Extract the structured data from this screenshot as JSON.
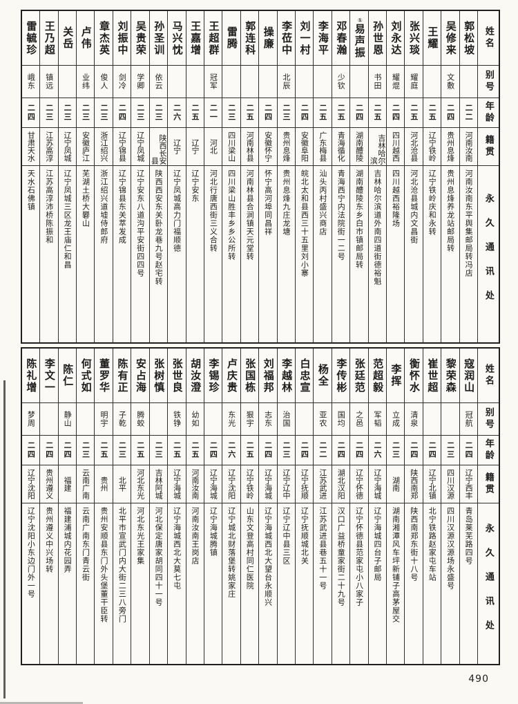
{
  "page": {
    "number": "490"
  },
  "headers": {
    "name": "姓名",
    "alias": "别号",
    "age": "年龄",
    "native": "籍贯",
    "address": "永久通讯处"
  },
  "tables": [
    {
      "persons": [
        {
          "name": "郭松坡",
          "alias": "",
          "age": "二二",
          "native": "河南汝南",
          "address": "河南汝南东平舆集邮局转冯店"
        },
        {
          "name": "吴修来",
          "alias": "文敷",
          "age": "二四",
          "native": "贵州息烽",
          "address": "贵州息烽养龙站邮局转"
        },
        {
          "name": "王耀",
          "alias": "",
          "age": "二五",
          "native": "辽宁铁岭",
          "address": "辽宁铁岭庆和永转"
        },
        {
          "name": "张兴琰",
          "alias": "耀庭",
          "age": "二五",
          "native": "河北沧县",
          "address": "河北沧县城内文昌街"
        },
        {
          "name": "刘永达",
          "alias": "耀焜",
          "age": "二四",
          "native": "四川越西",
          "address": "四川越西裕隆场"
        },
        {
          "name": "孙世恩",
          "alias": "书田",
          "age": "二五",
          "native": "吉林哈尔滨",
          "address": "吉林哈尔滨道外南四道街德裕魁"
        },
        {
          "name": "易声振",
          "note": "①",
          "alias": "",
          "age": "二四",
          "native": "湖南醴陵",
          "address": "湖南醴陵东乡白市镇邮局转"
        },
        {
          "name": "邓春瀚",
          "alias": "少钦",
          "age": "二五",
          "native": "青海循化",
          "address": "青海西宁内法院街一二号"
        },
        {
          "name": "李海平",
          "alias": "",
          "age": "二五",
          "native": "广东梅县",
          "address": "汕头丙村盛兴商店"
        },
        {
          "name": "刘一村",
          "alias": "",
          "age": "二四",
          "native": "安徽阜阳",
          "address": "皖北太和县西三十五里刘小寨"
        },
        {
          "name": "李莅中",
          "alias": "北辰",
          "age": "二三",
          "native": "贵州息烽",
          "address": "贵州息烽九庄龙塘"
        },
        {
          "name": "操廉",
          "alias": "",
          "age": "二四",
          "native": "安徽怀宁",
          "address": "怀宁高河埠同昌祥"
        },
        {
          "name": "郭连科",
          "alias": "",
          "age": "二五",
          "native": "河南林县",
          "address": "河南林县合涧镇天元堂转"
        },
        {
          "name": "雷腾",
          "alias": "",
          "age": "二三",
          "native": "四川梁山",
          "address": "四川梁山胜丰乡乡公所转"
        },
        {
          "name": "王超群",
          "alias": "冠军",
          "age": "二一",
          "native": "河北",
          "address": "河北行唐西街三义合转"
        },
        {
          "name": "王嘉增",
          "alias": "",
          "age": "二五",
          "native": "辽宁",
          "address": "辽宁安东"
        },
        {
          "name": "马兴忱",
          "alias": "",
          "age": "二六",
          "native": "辽宁",
          "address": "辽宁凤城高力门福顺德"
        },
        {
          "name": "孙圣训",
          "alias": "依云",
          "age": "二三",
          "native": "陕西长安县",
          "address": "陕西西安东关卧龙巷九号赵宅转"
        },
        {
          "name": "吴贵荣",
          "alias": "学卿",
          "age": "二三",
          "native": "辽宁凤城",
          "address": "辽宁安东八道沟平安街四四号"
        },
        {
          "name": "刘振中",
          "alias": "剑冷",
          "age": "二四",
          "native": "辽宁锦县",
          "address": "辽宁锦县东关萃发成"
        },
        {
          "name": "章杰英",
          "alias": "俊人",
          "age": "二三",
          "native": "浙江绍兴",
          "address": "浙江绍兴道墟侍郎府"
        },
        {
          "name": "卢伟",
          "alias": "业纬",
          "age": "二三",
          "native": "安徽庐江",
          "address": "芜湖土桥大礬山"
        },
        {
          "name": "关岳",
          "alias": "",
          "age": "二三",
          "native": "辽宁凤城",
          "address": "辽宁凤城三区龙王庙仁和昌"
        },
        {
          "name": "王乃超",
          "alias": "镇远",
          "age": "二三",
          "native": "江苏高淳",
          "address": "江苏高淳沛桥陈振和"
        },
        {
          "name": "雷毓珍",
          "alias": "峨东",
          "age": "二四",
          "native": "甘肃天水",
          "address": "天水石佛镇"
        }
      ]
    },
    {
      "persons": [
        {
          "name": "寇润山",
          "alias": "冠航",
          "age": "二四",
          "native": "辽宁西丰",
          "address": "青岛莱芜路四号"
        },
        {
          "name": "黎荣森",
          "alias": "",
          "age": "二三",
          "native": "四川汉源",
          "address": "四川汉源汉源场永盛号"
        },
        {
          "name": "崔世超",
          "alias": "",
          "age": "二四",
          "native": "辽宁北镇",
          "address": "北宁铁路赵家屯车站"
        },
        {
          "name": "衡怀水",
          "alias": "清泉",
          "age": "二四",
          "native": "陕西南郑",
          "address": "陕西南郑东街十八号"
        },
        {
          "name": "李挥",
          "alias": "立成",
          "age": "二三",
          "native": "湖南",
          "address": "湖南湘潭风车坪新铺子高茅屋交"
        },
        {
          "name": "范超毅",
          "alias": "军韬",
          "age": "二六",
          "native": "辽宁海城",
          "address": "辽宁海城四台子邮局"
        },
        {
          "name": "张廷范",
          "alias": "之邑",
          "age": "二四",
          "native": "辽宁怀德",
          "address": "辽宁怀德县范家屯小八家子"
        },
        {
          "name": "李传彬",
          "alias": "国均",
          "age": "二四",
          "native": "湖北汉阳",
          "address": "汉口广益桥童家街二十九号"
        },
        {
          "name": "杨全",
          "alias": "亚农",
          "age": "二二",
          "native": "江苏武进",
          "address": "江苏武进县巷五十一号"
        },
        {
          "name": "白忠宣",
          "alias": "",
          "age": "二四",
          "native": "辽宁抚顺",
          "address": "辽宁抚顺城北关"
        },
        {
          "name": "李越林",
          "alias": "治国",
          "age": "二三",
          "native": "辽宁辽中",
          "address": "辽宁辽中县三区"
        },
        {
          "name": "刘福邦",
          "alias": "志东",
          "age": "二四",
          "native": "辽宁海城",
          "address": "辽宁海城西北大望台永顺兴"
        },
        {
          "name": "张国栋",
          "alias": "狠宇",
          "age": "二五",
          "native": "辽宁铁岭",
          "address": "山东文登高村同仁医院"
        },
        {
          "name": "卢庆贵",
          "alias": "东光",
          "age": "二六",
          "native": "辽宁沈阳",
          "address": "辽宁城北财落堡转姚家庄"
        },
        {
          "name": "李锡珍",
          "alias": "",
          "age": "二四",
          "native": "辽宁海城",
          "address": "辽宁海城腾镇"
        },
        {
          "name": "胡汝澄",
          "alias": "幼如",
          "age": "二五",
          "native": "河南汝南",
          "address": "河南汝南王岗店"
        },
        {
          "name": "张世良",
          "alias": "铁铮",
          "age": "二五",
          "native": "辽宁海城",
          "address": "辽宁海城西北大莫七屯"
        },
        {
          "name": "张树慎",
          "alias": "",
          "age": "二三",
          "native": "吉林阿城",
          "address": "河北保定唐家胡同四十一号"
        },
        {
          "name": "安占海",
          "alias": "腾蛟",
          "age": "二五",
          "native": "河北东光",
          "address": "河北东光王家集"
        },
        {
          "name": "陈有正",
          "alias": "子乾",
          "age": "二三",
          "native": "北平",
          "address": "北平市宣武门内大街二三八旁门"
        },
        {
          "name": "董罗华",
          "alias": "明宇",
          "age": "二五",
          "native": "贵州",
          "address": "贵州安顺县东门外头堡董干臣转"
        },
        {
          "name": "何式如",
          "alias": "",
          "age": "二三",
          "native": "云南广南",
          "address": "云南广南东门青云街"
        },
        {
          "name": "陈仁",
          "alias": "静山",
          "age": "二四",
          "native": "福建",
          "address": "福建浦城内花园弄"
        },
        {
          "name": "李文一",
          "alias": "",
          "age": "二四",
          "native": "贵州遵义",
          "address": "贵州遵义中兴场转"
        },
        {
          "name": "陈礼增",
          "alias": "梦周",
          "age": "二四",
          "native": "辽宁沈阳",
          "address": "辽宁沈阳小东边门外一号"
        }
      ]
    }
  ]
}
